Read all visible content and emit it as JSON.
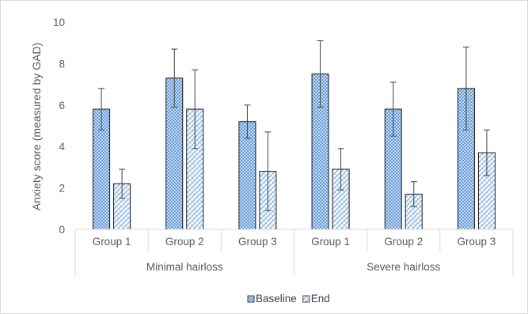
{
  "chart_data": {
    "type": "bar",
    "ylabel": "Anxiety score (measured by GAD)",
    "xlabel": "",
    "ylim": [
      0,
      10
    ],
    "yticks": [
      0,
      2,
      4,
      6,
      8,
      10
    ],
    "grid": false,
    "legend_position": "bottom",
    "category_groups": [
      {
        "label": "Minimal hairloss",
        "categories": [
          "Group 1",
          "Group 2",
          "Group 3"
        ]
      },
      {
        "label": "Severe hairloss",
        "categories": [
          "Group 1",
          "Group 2",
          "Group 3"
        ]
      }
    ],
    "categories": [
      "Group 1",
      "Group 2",
      "Group 3",
      "Group 1",
      "Group 2",
      "Group 3"
    ],
    "series": [
      {
        "name": "Baseline",
        "pattern": "dense-dots",
        "color": "#4a8fd8",
        "values": [
          5.8,
          7.3,
          5.2,
          7.5,
          5.8,
          6.8
        ],
        "error": [
          1.0,
          1.4,
          0.8,
          1.6,
          1.3,
          2.0
        ]
      },
      {
        "name": "End",
        "pattern": "diagonal-hatch",
        "color": "#6ea6e0",
        "values": [
          2.2,
          5.8,
          2.8,
          2.9,
          1.7,
          3.7
        ],
        "error": [
          0.7,
          1.9,
          1.9,
          1.0,
          0.6,
          1.1
        ]
      }
    ]
  }
}
